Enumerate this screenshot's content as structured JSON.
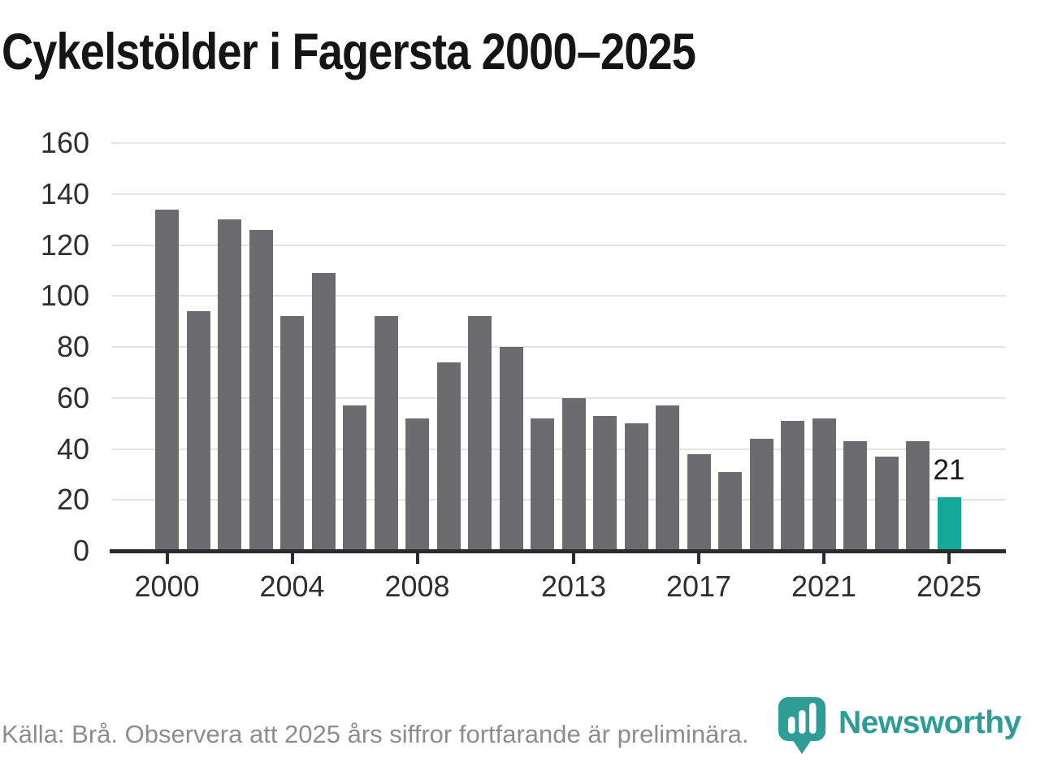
{
  "header": {
    "title": "Cykelstölder i Fagersta 2000–2025"
  },
  "chart_data": {
    "type": "bar",
    "title": "Cykelstölder i Fagersta 2000–2025",
    "categories": [
      2000,
      2001,
      2002,
      2003,
      2004,
      2005,
      2006,
      2007,
      2008,
      2009,
      2010,
      2011,
      2012,
      2013,
      2014,
      2015,
      2016,
      2017,
      2018,
      2019,
      2020,
      2021,
      2022,
      2023,
      2024,
      2025
    ],
    "values": [
      134,
      94,
      130,
      126,
      92,
      109,
      57,
      92,
      52,
      74,
      92,
      80,
      52,
      60,
      53,
      50,
      57,
      38,
      31,
      44,
      51,
      52,
      43,
      37,
      43,
      21
    ],
    "xlabel": "",
    "ylabel": "",
    "ylim": [
      0,
      160
    ],
    "y_ticks": [
      0,
      20,
      40,
      60,
      80,
      100,
      120,
      140,
      160
    ],
    "x_tick_years": [
      2000,
      2004,
      2008,
      2013,
      2017,
      2021,
      2025
    ],
    "grid": true,
    "legend": "none",
    "bar_color": "#6c6b70",
    "highlight_year": 2025,
    "highlight_color": "#14a89b",
    "annotation": {
      "year": 2025,
      "text": "21"
    }
  },
  "footer": {
    "source_note": "Källa: Brå. Observera att 2025 års siffror fortfarande är preliminära.",
    "brand": "Newsworthy",
    "brand_color": "#2e9d95"
  }
}
